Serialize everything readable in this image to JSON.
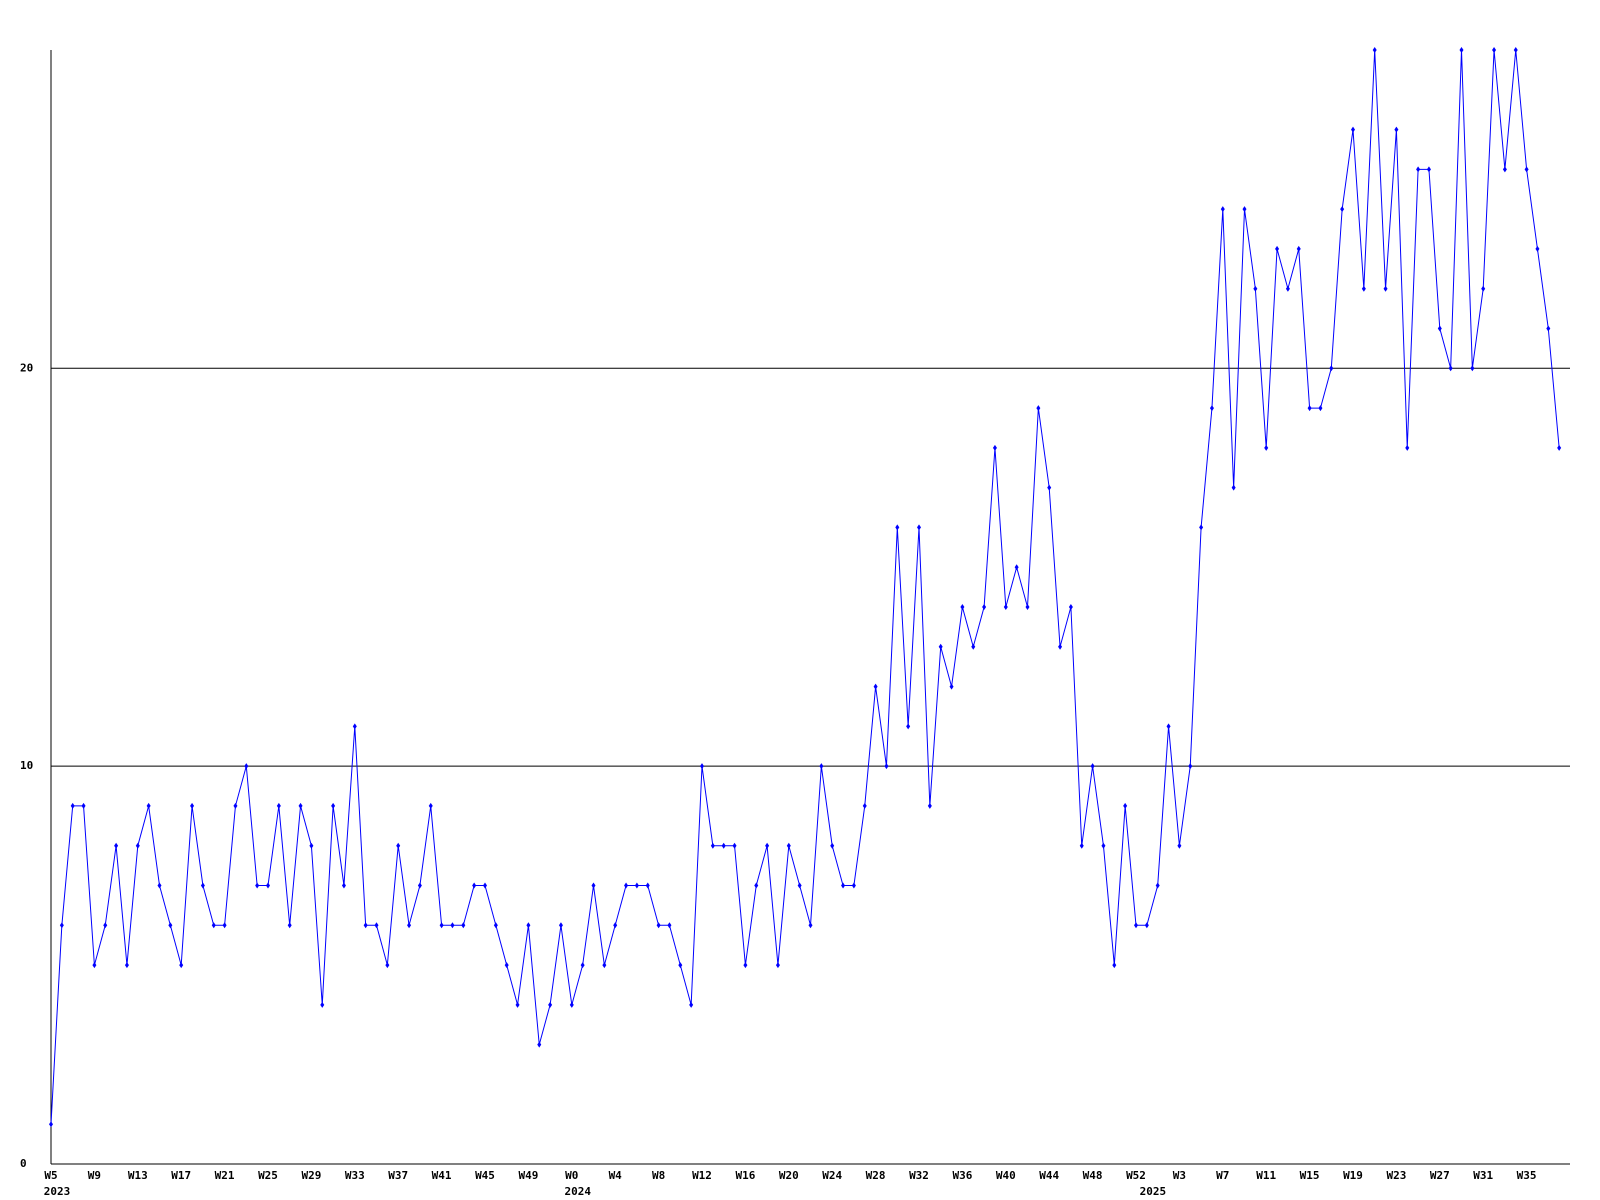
{
  "chart_data": {
    "type": "line",
    "color": "#0000ff",
    "grid": true,
    "ylim": [
      0,
      28
    ],
    "yticks": [
      0,
      10,
      20
    ],
    "categories": [
      "W5",
      null,
      null,
      null,
      "W9",
      null,
      null,
      null,
      "W13",
      null,
      null,
      null,
      "W17",
      null,
      null,
      null,
      "W21",
      null,
      null,
      null,
      "W25",
      null,
      null,
      null,
      "W29",
      null,
      null,
      null,
      "W33",
      null,
      null,
      null,
      "W37",
      null,
      null,
      null,
      "W41",
      null,
      null,
      null,
      "W45",
      null,
      null,
      null,
      "W49",
      null,
      null,
      null,
      "W0",
      null,
      null,
      null,
      "W4",
      null,
      null,
      null,
      "W8",
      null,
      null,
      null,
      "W12",
      null,
      null,
      null,
      "W16",
      null,
      null,
      null,
      "W20",
      null,
      null,
      null,
      "W24",
      null,
      null,
      null,
      "W28",
      null,
      null,
      null,
      "W32",
      null,
      null,
      null,
      "W36",
      null,
      null,
      null,
      "W40",
      null,
      null,
      null,
      "W44",
      null,
      null,
      null,
      "W48",
      null,
      null,
      null,
      "W52",
      null,
      null,
      null,
      "W3",
      null,
      null,
      null,
      "W7",
      null,
      null,
      null,
      "W11",
      null,
      null,
      null,
      "W15",
      null,
      null,
      null,
      "W19",
      null,
      null,
      null,
      "W23",
      null,
      null,
      null,
      "W27",
      null,
      null,
      null,
      "W31",
      null,
      null,
      null,
      "W35",
      null,
      null,
      null
    ],
    "category_years": [
      "2023",
      null,
      null,
      null,
      null,
      null,
      null,
      null,
      null,
      null,
      null,
      null,
      null,
      null,
      null,
      null,
      null,
      null,
      null,
      null,
      null,
      null,
      null,
      null,
      null,
      null,
      null,
      null,
      null,
      null,
      null,
      null,
      null,
      null,
      null,
      null,
      null,
      null,
      null,
      null,
      null,
      null,
      null,
      null,
      null,
      null,
      null,
      null,
      "2024",
      null,
      null,
      null,
      null,
      null,
      null,
      null,
      null,
      null,
      null,
      null,
      null,
      null,
      null,
      null,
      null,
      null,
      null,
      null,
      null,
      null,
      null,
      null,
      null,
      null,
      null,
      null,
      null,
      null,
      null,
      null,
      null,
      null,
      null,
      null,
      null,
      null,
      null,
      null,
      null,
      null,
      null,
      null,
      null,
      null,
      null,
      null,
      null,
      null,
      null,
      null,
      null,
      "2025",
      null,
      null,
      null,
      null,
      null,
      null,
      null,
      null,
      null,
      null,
      null,
      null,
      null,
      null,
      null,
      null,
      null,
      null,
      null,
      null,
      null,
      null,
      null,
      null,
      null,
      null,
      null,
      null,
      null,
      null,
      null,
      null,
      null,
      null,
      null,
      null,
      null,
      null
    ],
    "values": [
      1,
      6,
      9,
      9,
      5,
      6,
      8,
      5,
      8,
      9,
      7,
      6,
      5,
      9,
      7,
      6,
      6,
      9,
      10,
      7,
      7,
      9,
      6,
      9,
      8,
      4,
      9,
      7,
      11,
      6,
      6,
      5,
      8,
      6,
      7,
      9,
      6,
      6,
      6,
      7,
      7,
      6,
      5,
      4,
      6,
      3,
      4,
      6,
      4,
      5,
      7,
      5,
      6,
      7,
      7,
      7,
      6,
      6,
      5,
      4,
      10,
      8,
      8,
      8,
      5,
      7,
      8,
      5,
      8,
      7,
      6,
      10,
      8,
      7,
      7,
      9,
      12,
      10,
      16,
      11,
      16,
      9,
      13,
      12,
      14,
      13,
      14,
      18,
      14,
      15,
      14,
      19,
      17,
      13,
      14,
      8,
      10,
      8,
      5,
      9,
      6,
      6,
      7,
      11,
      8,
      10,
      16,
      19,
      24,
      17,
      24,
      22,
      18,
      23,
      22,
      23,
      19,
      19,
      20,
      24,
      26,
      22,
      28,
      22,
      26,
      18,
      25,
      25,
      21,
      20,
      28,
      20,
      22,
      28,
      25,
      28,
      25,
      23,
      21,
      18
    ]
  }
}
